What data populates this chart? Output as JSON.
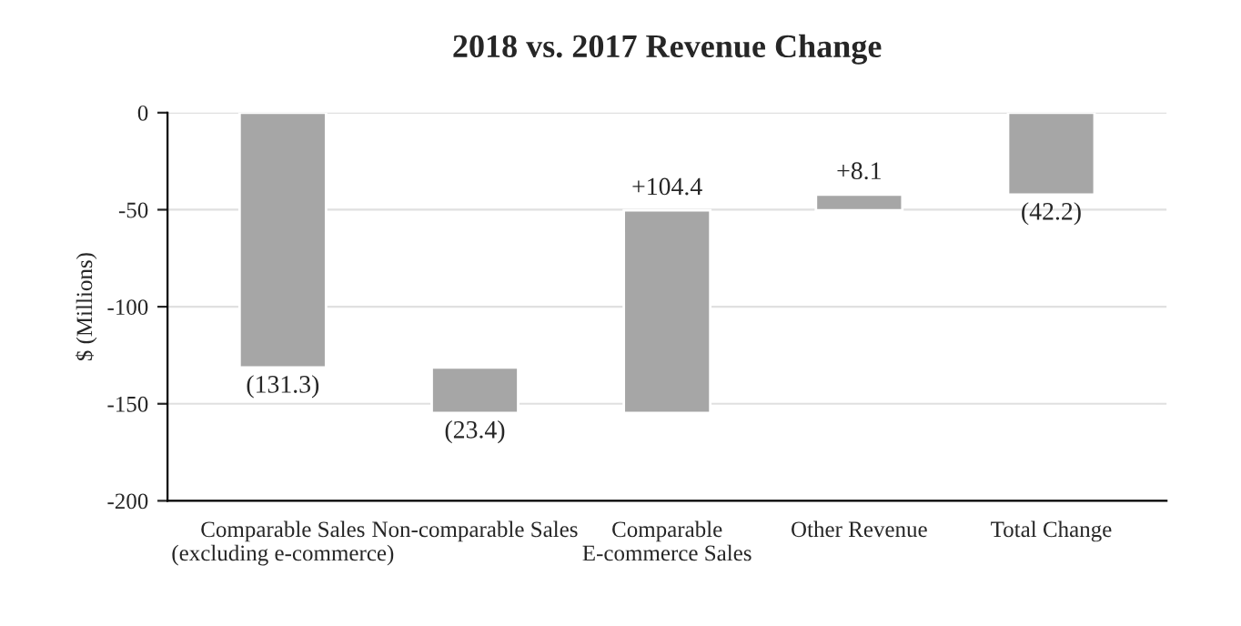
{
  "chart_data": {
    "type": "bar",
    "title": "2018 vs. 2017 Revenue Change",
    "ylabel": "$ (Millions)",
    "categories": [
      "Comparable Sales\n(excluding e-commerce)",
      "Non-comparable Sales",
      "Comparable\nE-commerce Sales",
      "Other Revenue",
      "Total Change"
    ],
    "values": [
      -131.3,
      -23.4,
      104.4,
      8.1,
      -42.2
    ],
    "base": [
      0,
      -131.3,
      -154.7,
      -50.3,
      0
    ],
    "value_labels": [
      "(131.3)",
      "(23.4)",
      "+104.4",
      "+8.1",
      "(42.2)"
    ],
    "color": "#a6a6a6",
    "ylim": [
      -200,
      0
    ],
    "yticks": [
      -200,
      -150,
      -100,
      -50,
      0
    ],
    "grid": "y"
  }
}
